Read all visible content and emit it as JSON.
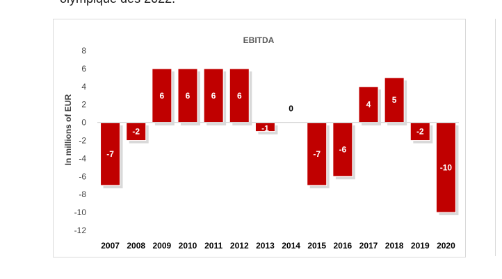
{
  "document": {
    "text_above": "olympique dès 2022."
  },
  "chart_data": {
    "type": "bar",
    "title": "EBITDA",
    "ylabel": "In millions of EUR",
    "xlabel": "",
    "categories": [
      "2007",
      "2008",
      "2009",
      "2010",
      "2011",
      "2012",
      "2013",
      "2014",
      "2015",
      "2016",
      "2017",
      "2018",
      "2019",
      "2020"
    ],
    "values": [
      -7,
      -2,
      6,
      6,
      6,
      6,
      -1,
      0,
      -7,
      -6,
      4,
      5,
      -2,
      -10
    ],
    "ylim": [
      -12,
      8
    ],
    "yticks": [
      8,
      6,
      4,
      2,
      0,
      -2,
      -4,
      -6,
      -8,
      -10,
      -12
    ],
    "grid": false,
    "legend": "none",
    "colors": {
      "bar": "#c00000",
      "shadow": "#bfbfbf",
      "label": "#ffffff",
      "axis": "#d9d9d9"
    }
  }
}
